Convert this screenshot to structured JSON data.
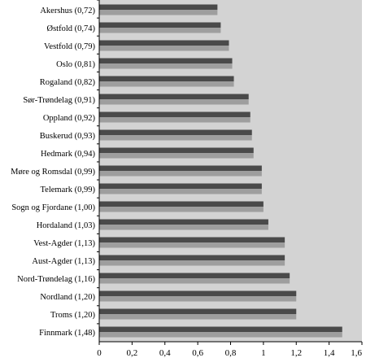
{
  "chart_data": {
    "type": "bar",
    "orientation": "horizontal",
    "categories": [
      "Akershus (0,72)",
      "Østfold (0,74)",
      "Vestfold (0,79)",
      "Oslo (0,81)",
      "Rogaland (0,82)",
      "Sør-Trøndelag (0,91)",
      "Oppland (0,92)",
      "Buskerud (0,93)",
      "Hedmark (0,94)",
      "Møre og Romsdal (0,99)",
      "Telemark (0,99)",
      "Sogn og Fjordane (1,00)",
      "Hordaland (1,03)",
      "Vest-Agder (1,13)",
      "Aust-Agder (1,13)",
      "Nord-Trøndelag (1,16)",
      "Nordland (1,20)",
      "Troms (1,20)",
      "Finnmark (1,48)"
    ],
    "series": [
      {
        "values": [
          0.72,
          0.74,
          0.79,
          0.81,
          0.82,
          0.91,
          0.92,
          0.93,
          0.94,
          0.99,
          0.99,
          1.0,
          1.03,
          1.13,
          1.13,
          1.16,
          1.2,
          1.2,
          1.48
        ]
      },
      {
        "values": [
          0.72,
          0.74,
          0.79,
          0.81,
          0.82,
          0.91,
          0.92,
          0.93,
          0.94,
          0.99,
          0.99,
          1.0,
          1.03,
          1.13,
          1.13,
          1.16,
          1.2,
          1.2,
          1.48
        ]
      }
    ],
    "xlim": [
      0,
      1.6
    ],
    "xticks": [
      0,
      0.2,
      0.4,
      0.6,
      0.8,
      1,
      1.2,
      1.4,
      1.6
    ],
    "xtick_labels": [
      "0",
      "0,2",
      "0,4",
      "0,6",
      "0,8",
      "1",
      "1,2",
      "1,4",
      "1,6"
    ],
    "title": "",
    "xlabel": "",
    "ylabel": "",
    "grid": false,
    "legend": "none",
    "colors": {
      "plot_background": "#d3d3d3",
      "series_dark": "#4a4a4a",
      "series_light": "#9e9e9e",
      "axis": "#000000"
    }
  }
}
